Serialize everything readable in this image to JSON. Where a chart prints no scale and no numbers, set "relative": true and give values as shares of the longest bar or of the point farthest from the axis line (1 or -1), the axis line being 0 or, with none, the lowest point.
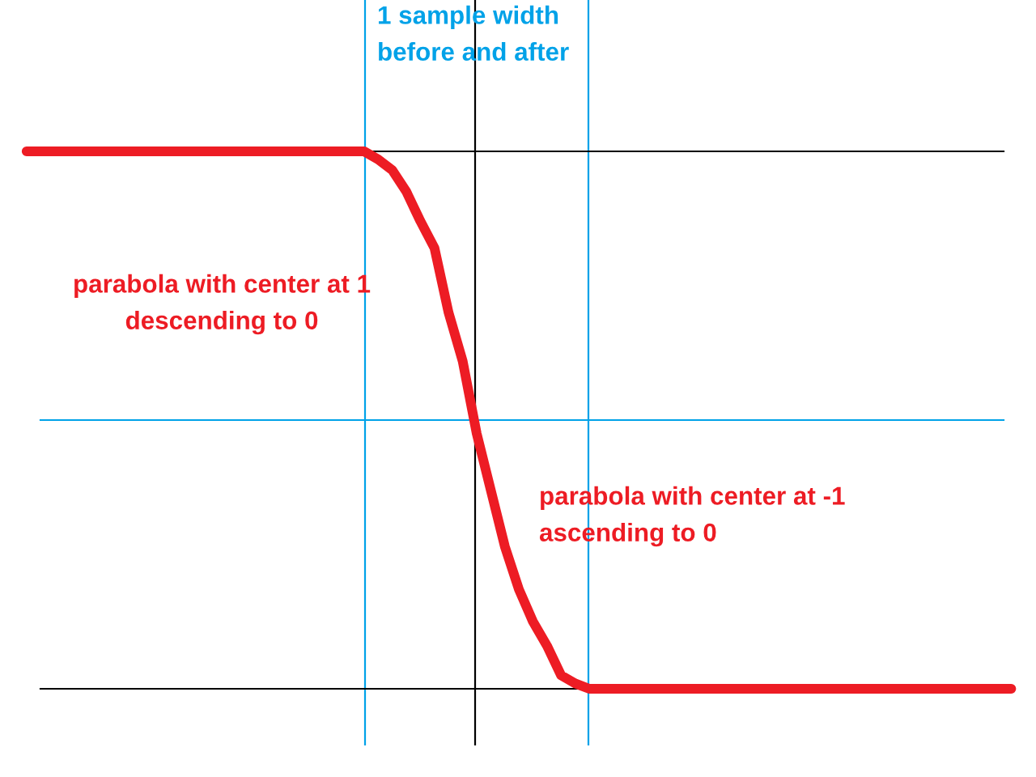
{
  "chart_data": {
    "type": "line",
    "relative": true,
    "categories": [
      null,
      null,
      null,
      null,
      null,
      null,
      null,
      null,
      null,
      null,
      null,
      null,
      null,
      null,
      null,
      null,
      null,
      null,
      null,
      null,
      null,
      null,
      null,
      null,
      null,
      null,
      null,
      null,
      null,
      null,
      null,
      null,
      null,
      null,
      null,
      null,
      null,
      null,
      null,
      null,
      null,
      null,
      null,
      null,
      null,
      null,
      null,
      null,
      null,
      null,
      null,
      null,
      null,
      null,
      null,
      null,
      null,
      null,
      null,
      null,
      null,
      null,
      null,
      null,
      null,
      null,
      null,
      null,
      null,
      null,
      null
    ],
    "values": [
      1,
      1,
      1,
      1,
      1,
      1,
      1,
      1,
      1,
      1,
      1,
      1,
      1,
      1,
      1,
      1,
      1,
      1,
      1,
      1,
      1,
      1,
      1,
      1,
      1,
      0.97,
      0.93,
      0.85,
      0.74,
      0.64,
      0.4,
      0.22,
      -0.05,
      -0.26,
      -0.47,
      -0.63,
      -0.75,
      -0.84,
      -0.95,
      -0.98,
      -1,
      -1,
      -1,
      -1,
      -1,
      -1,
      -1,
      -1,
      -1,
      -1,
      -1,
      -1,
      -1,
      -1,
      -1,
      -1,
      -1,
      -1,
      -1,
      -1,
      -1,
      -1,
      -1,
      -1,
      -1,
      -1,
      -1,
      -1,
      -1,
      -1,
      -1
    ],
    "color": "#ed1c24",
    "ref_lines": [
      {
        "axis": "y",
        "value": 1,
        "color": "#000000"
      },
      {
        "axis": "y",
        "value": 0,
        "color": "#00a2e8"
      },
      {
        "axis": "y",
        "value": -1,
        "color": "#000000"
      }
    ],
    "annotations": [
      "1 sample width\nbefore and after",
      "parabola with center at 1\ndescending to 0",
      "parabola with center at -1\nascending to 0"
    ]
  }
}
